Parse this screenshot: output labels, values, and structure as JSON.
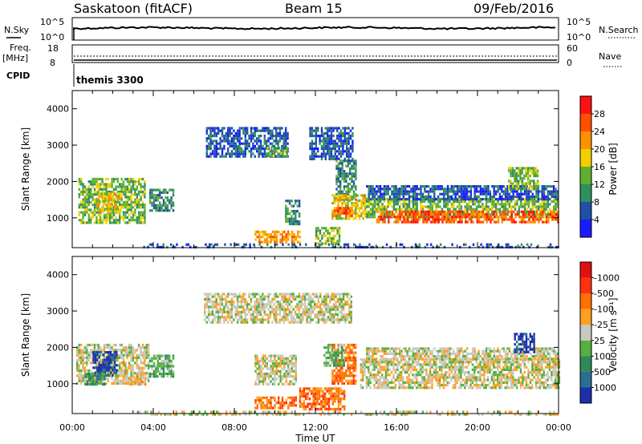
{
  "header": {
    "station": "Saskatoon (fitACF)",
    "beam": "Beam 15",
    "date": "09/Feb/2016"
  },
  "status_panels": {
    "nsky_label": "N.Sky",
    "nsky_ticks": [
      "10^5",
      "10^0"
    ],
    "nsearch_label": "N.Search",
    "nsearch_ticks": [
      "10^5",
      "10^0"
    ],
    "freq_label": "Freq.",
    "freq_unit": "[MHz]",
    "freq_ticks": [
      "18",
      "8"
    ],
    "nave_label": "Nave",
    "nave_ticks": [
      "60",
      "0"
    ],
    "cpid_label": "CPID",
    "cpid_value": "themis 3300"
  },
  "chart_data": [
    {
      "type": "heatmap",
      "name": "power",
      "ylabel": "Slant Range [km]",
      "xlabel": "Time UT",
      "ylim": [
        180,
        4500
      ],
      "y_ticks": [
        1000,
        2000,
        3000,
        4000
      ],
      "x_ticks": [
        "00:00",
        "04:00",
        "08:00",
        "12:00",
        "16:00",
        "20:00",
        "00:00"
      ],
      "colorbar_label": "Power [dB]",
      "colorbar_ticks": [
        "4",
        "8",
        "12",
        "16",
        "20",
        "24",
        "28"
      ],
      "colorbar_colors": [
        "#1a1aff",
        "#1f4fa8",
        "#2f8f5f",
        "#60b030",
        "#f0d000",
        "#ff9000",
        "#ff5000",
        "#ff1010"
      ],
      "regions": [
        {
          "t0": 0.3,
          "t1": 3.6,
          "r0": 900,
          "r1": 2100,
          "level": 3
        },
        {
          "t0": 1.2,
          "t1": 2.4,
          "r0": 1150,
          "r1": 1700,
          "level": 4
        },
        {
          "t0": 3.8,
          "t1": 5.0,
          "r0": 1200,
          "r1": 1800,
          "level": 2
        },
        {
          "t0": 6.6,
          "t1": 10.6,
          "r0": 2700,
          "r1": 3500,
          "level": 1
        },
        {
          "t0": 9.6,
          "t1": 10.6,
          "r0": 2700,
          "r1": 2950,
          "level": 3
        },
        {
          "t0": 11.7,
          "t1": 13.8,
          "r0": 2600,
          "r1": 3500,
          "level": 1
        },
        {
          "t0": 13.0,
          "t1": 14.0,
          "r0": 1500,
          "r1": 2600,
          "level": 2
        },
        {
          "t0": 12.8,
          "t1": 14.6,
          "r0": 1000,
          "r1": 1650,
          "level": 4
        },
        {
          "t0": 12.9,
          "t1": 13.8,
          "r0": 1050,
          "r1": 1300,
          "level": 6
        },
        {
          "t0": 14.5,
          "t1": 24.0,
          "r0": 1050,
          "r1": 1550,
          "level": 3
        },
        {
          "t0": 15.0,
          "t1": 24.0,
          "r0": 850,
          "r1": 1200,
          "level": 6
        },
        {
          "t0": 14.5,
          "t1": 24.0,
          "r0": 1500,
          "r1": 1900,
          "level": 1
        },
        {
          "t0": 21.5,
          "t1": 23.0,
          "r0": 1800,
          "r1": 2400,
          "level": 3
        },
        {
          "t0": 9.0,
          "t1": 11.2,
          "r0": 300,
          "r1": 650,
          "level": 5
        },
        {
          "t0": 12.0,
          "t1": 13.2,
          "r0": 300,
          "r1": 750,
          "level": 3
        },
        {
          "t0": 10.5,
          "t1": 11.2,
          "r0": 850,
          "r1": 1500,
          "level": 2
        },
        {
          "t0": 3.5,
          "t1": 24.0,
          "r0": 200,
          "r1": 300,
          "level": 1
        }
      ]
    },
    {
      "type": "heatmap",
      "name": "velocity",
      "ylabel": "Slant Range [km]",
      "xlabel": "Time UT",
      "ylim": [
        180,
        4500
      ],
      "y_ticks": [
        1000,
        2000,
        3000,
        4000
      ],
      "x_ticks": [
        "00:00",
        "04:00",
        "08:00",
        "12:00",
        "16:00",
        "20:00",
        "00:00"
      ],
      "colorbar_label": "Velocity [m s⁻¹]",
      "colorbar_ticks": [
        "1000",
        "500",
        "100",
        "25",
        "-25",
        "-100",
        "-500",
        "-1000"
      ],
      "colorbar_colors": [
        "#1a2fa8",
        "#2a6f8f",
        "#2e8b57",
        "#55b040",
        "#c8c8c0",
        "#ffa020",
        "#ff7000",
        "#ff3010",
        "#e01010"
      ],
      "regions": [
        {
          "t0": 0.2,
          "t1": 3.8,
          "r0": 1000,
          "r1": 2100,
          "level": 4
        },
        {
          "t0": 1.0,
          "t1": 2.2,
          "r0": 1200,
          "r1": 1900,
          "level": 0
        },
        {
          "t0": 0.6,
          "t1": 1.6,
          "r0": 1000,
          "r1": 1300,
          "level": 2
        },
        {
          "t0": 2.8,
          "t1": 3.6,
          "r0": 1000,
          "r1": 1300,
          "level": 5
        },
        {
          "t0": 3.8,
          "t1": 5.0,
          "r0": 1200,
          "r1": 1800,
          "level": 3
        },
        {
          "t0": 6.5,
          "t1": 13.8,
          "r0": 2700,
          "r1": 3500,
          "level": 4
        },
        {
          "t0": 12.8,
          "t1": 14.0,
          "r0": 1000,
          "r1": 2100,
          "level": 6
        },
        {
          "t0": 12.4,
          "t1": 13.4,
          "r0": 1500,
          "r1": 2100,
          "level": 3
        },
        {
          "t0": 14.2,
          "t1": 24.0,
          "r0": 900,
          "r1": 1700,
          "level": 4
        },
        {
          "t0": 14.5,
          "t1": 24.0,
          "r0": 1700,
          "r1": 2000,
          "level": 4
        },
        {
          "t0": 21.8,
          "t1": 22.8,
          "r0": 1900,
          "r1": 2400,
          "level": 0
        },
        {
          "t0": 9.0,
          "t1": 11.0,
          "r0": 300,
          "r1": 650,
          "level": 6
        },
        {
          "t0": 11.2,
          "t1": 13.4,
          "r0": 300,
          "r1": 900,
          "level": 6
        },
        {
          "t0": 9.0,
          "t1": 11.0,
          "r0": 1000,
          "r1": 1800,
          "level": 4
        },
        {
          "t0": 3.0,
          "t1": 24.0,
          "r0": 180,
          "r1": 260,
          "level": 4
        }
      ]
    }
  ]
}
